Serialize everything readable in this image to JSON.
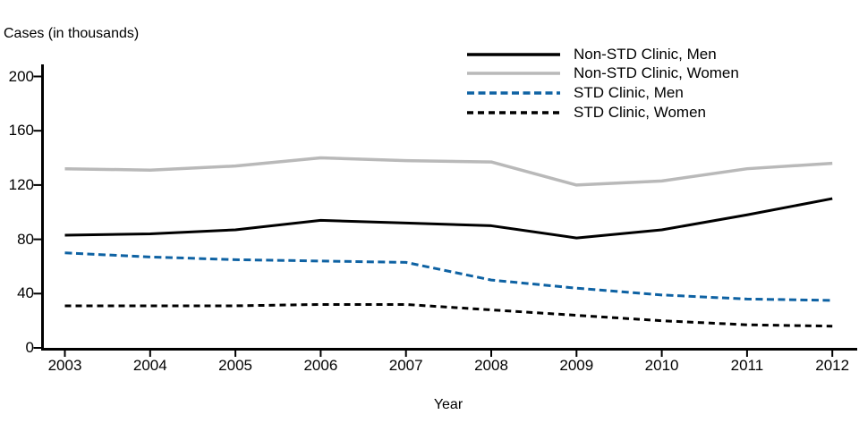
{
  "y_axis_title": "Cases (in thousands)",
  "x_axis_title": "Year",
  "chart_data": {
    "type": "line",
    "title": "",
    "xlabel": "Year",
    "ylabel": "Cases (in thousands)",
    "x": [
      2003,
      2004,
      2005,
      2006,
      2007,
      2008,
      2009,
      2010,
      2011,
      2012
    ],
    "ylim": [
      0,
      210
    ],
    "y_ticks": [
      0,
      40,
      80,
      120,
      160,
      200
    ],
    "grid": false,
    "legend_position": "top-right-inside",
    "series": [
      {
        "name": "Non-STD Clinic, Men",
        "color": "#000000",
        "style": "solid",
        "values": [
          83,
          84,
          87,
          94,
          92,
          90,
          81,
          87,
          98,
          110
        ]
      },
      {
        "name": "Non-STD Clinic, Women",
        "color": "#b9b9b9",
        "style": "solid",
        "values": [
          132,
          131,
          134,
          140,
          138,
          137,
          120,
          123,
          132,
          136
        ]
      },
      {
        "name": "STD Clinic, Men",
        "color": "#0e62a3",
        "style": "dashed",
        "values": [
          70,
          67,
          65,
          64,
          63,
          50,
          44,
          39,
          36,
          35
        ]
      },
      {
        "name": "STD Clinic, Women",
        "color": "#000000",
        "style": "dashed",
        "values": [
          31,
          31,
          31,
          32,
          32,
          28,
          24,
          20,
          17,
          16
        ]
      }
    ]
  }
}
